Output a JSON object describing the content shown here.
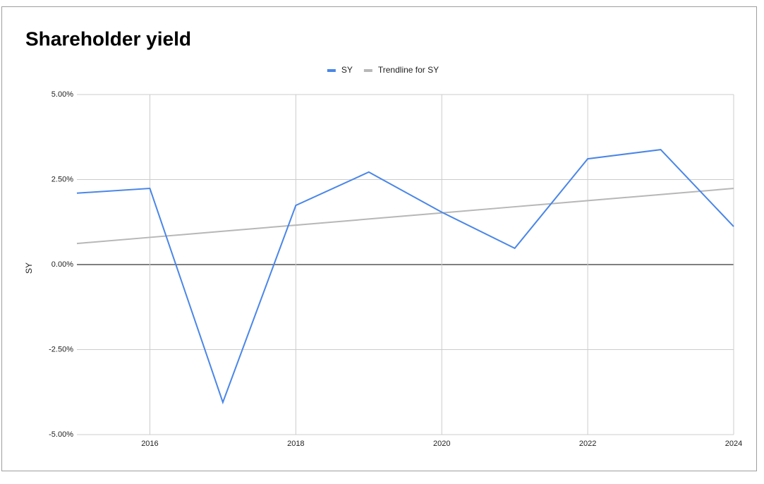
{
  "chart_data": {
    "type": "line",
    "title": "Shareholder yield",
    "y_label": "SY",
    "x": [
      2015,
      2016,
      2017,
      2018,
      2019,
      2020,
      2021,
      2022,
      2023,
      2024
    ],
    "series": [
      {
        "name": "SY",
        "color": "#4a86e8",
        "values": [
          2.1,
          2.24,
          -4.05,
          1.74,
          2.72,
          1.54,
          0.48,
          3.11,
          3.38,
          1.12
        ]
      },
      {
        "name": "Trendline for SY",
        "color": "#b7b7b7",
        "values": [
          0.62,
          0.8,
          0.98,
          1.16,
          1.34,
          1.52,
          1.7,
          1.88,
          2.06,
          2.24
        ]
      }
    ],
    "xlim": [
      2015,
      2024
    ],
    "xticks": [
      2016,
      2018,
      2020,
      2022,
      2024
    ],
    "ylim": [
      -5,
      5
    ],
    "yticks": [
      {
        "value": -5,
        "label": "-5.00%"
      },
      {
        "value": -2.5,
        "label": "-2.50%"
      },
      {
        "value": 0,
        "label": "0.00%"
      },
      {
        "value": 2.5,
        "label": "2.50%"
      },
      {
        "value": 5,
        "label": "5.00%"
      }
    ],
    "grid": true,
    "legend": "top"
  }
}
